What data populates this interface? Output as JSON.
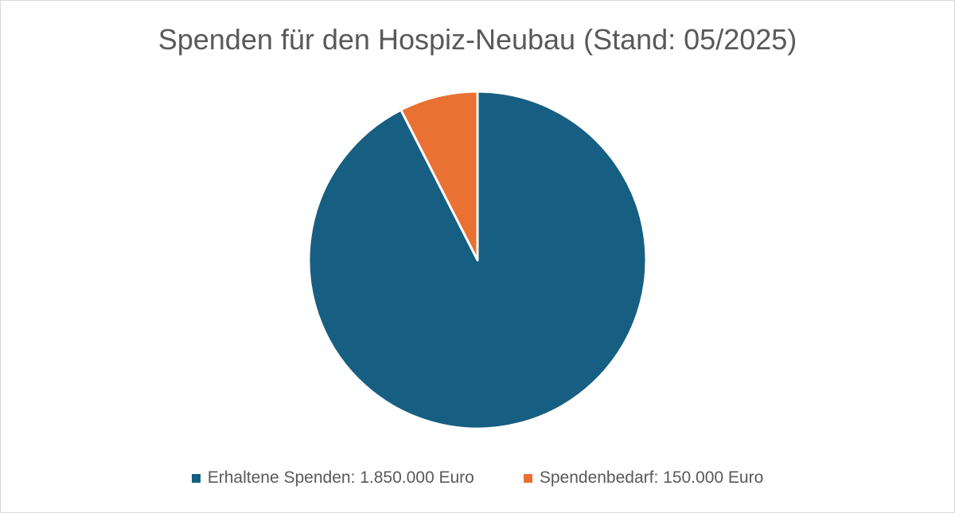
{
  "chart_data": {
    "type": "pie",
    "title": "Spenden für den Hospiz-Neubau (Stand: 05/2025)",
    "series": [
      {
        "name": "Erhaltene Spenden: 1.850.000 Euro",
        "value": 1850000,
        "color": "#175F82"
      },
      {
        "name": "Spendenbedarf: 150.000 Euro",
        "value": 150000,
        "color": "#E97132"
      }
    ],
    "start_angle": "12 o'clock, clockwise",
    "legend": "bottom"
  }
}
